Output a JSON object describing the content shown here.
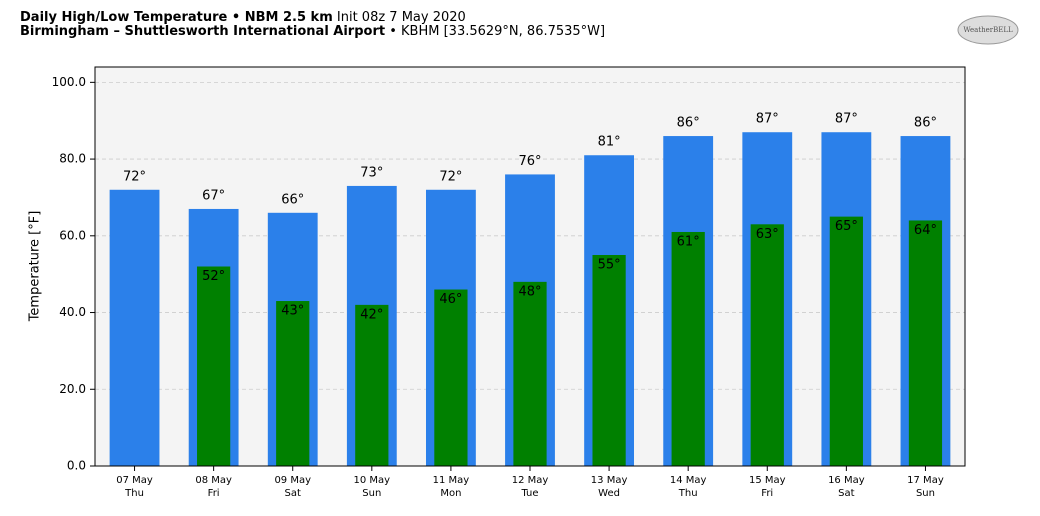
{
  "chart_data": {
    "type": "bar",
    "title": "Daily High/Low Temperature • NBM 2.5 km",
    "subtitle": "Init 08z 7 May 2020",
    "location": "Birmingham – Shuttlesworth International Airport",
    "station": "• KBHM [33.5629°N, 86.7535°W]",
    "logo": "WeatherBELL",
    "ylabel": "Temperature [°F]",
    "categories": [
      "07 May",
      "08 May",
      "09 May",
      "10 May",
      "11 May",
      "12 May",
      "13 May",
      "14 May",
      "15 May",
      "16 May",
      "17 May"
    ],
    "day_labels": [
      "Thu",
      "Fri",
      "Sat",
      "Sun",
      "Mon",
      "Tue",
      "Wed",
      "Thu",
      "Fri",
      "Sat",
      "Sun"
    ],
    "series": [
      {
        "name": "High",
        "color": "#2b80ea",
        "values": [
          72,
          67,
          66,
          73,
          72,
          76,
          81,
          86,
          87,
          87,
          86
        ],
        "value_labels": [
          "72°",
          "67°",
          "66°",
          "73°",
          "72°",
          "76°",
          "81°",
          "86°",
          "87°",
          "87°",
          "86°"
        ]
      },
      {
        "name": "Low",
        "color": "#008000",
        "values": [
          null,
          52,
          43,
          42,
          46,
          48,
          55,
          61,
          63,
          65,
          64
        ],
        "value_labels": [
          null,
          "52°",
          "43°",
          "42°",
          "46°",
          "48°",
          "55°",
          "61°",
          "63°",
          "65°",
          "64°"
        ]
      }
    ],
    "ylim": [
      0,
      104
    ],
    "yticks": [
      {
        "value": 0,
        "label": "0.0"
      },
      {
        "value": 20,
        "label": "20.0"
      },
      {
        "value": 40,
        "label": "40.0"
      },
      {
        "value": 60,
        "label": "60.0"
      },
      {
        "value": 80,
        "label": "80.0"
      },
      {
        "value": 100,
        "label": "100.0"
      }
    ],
    "grid": true
  }
}
